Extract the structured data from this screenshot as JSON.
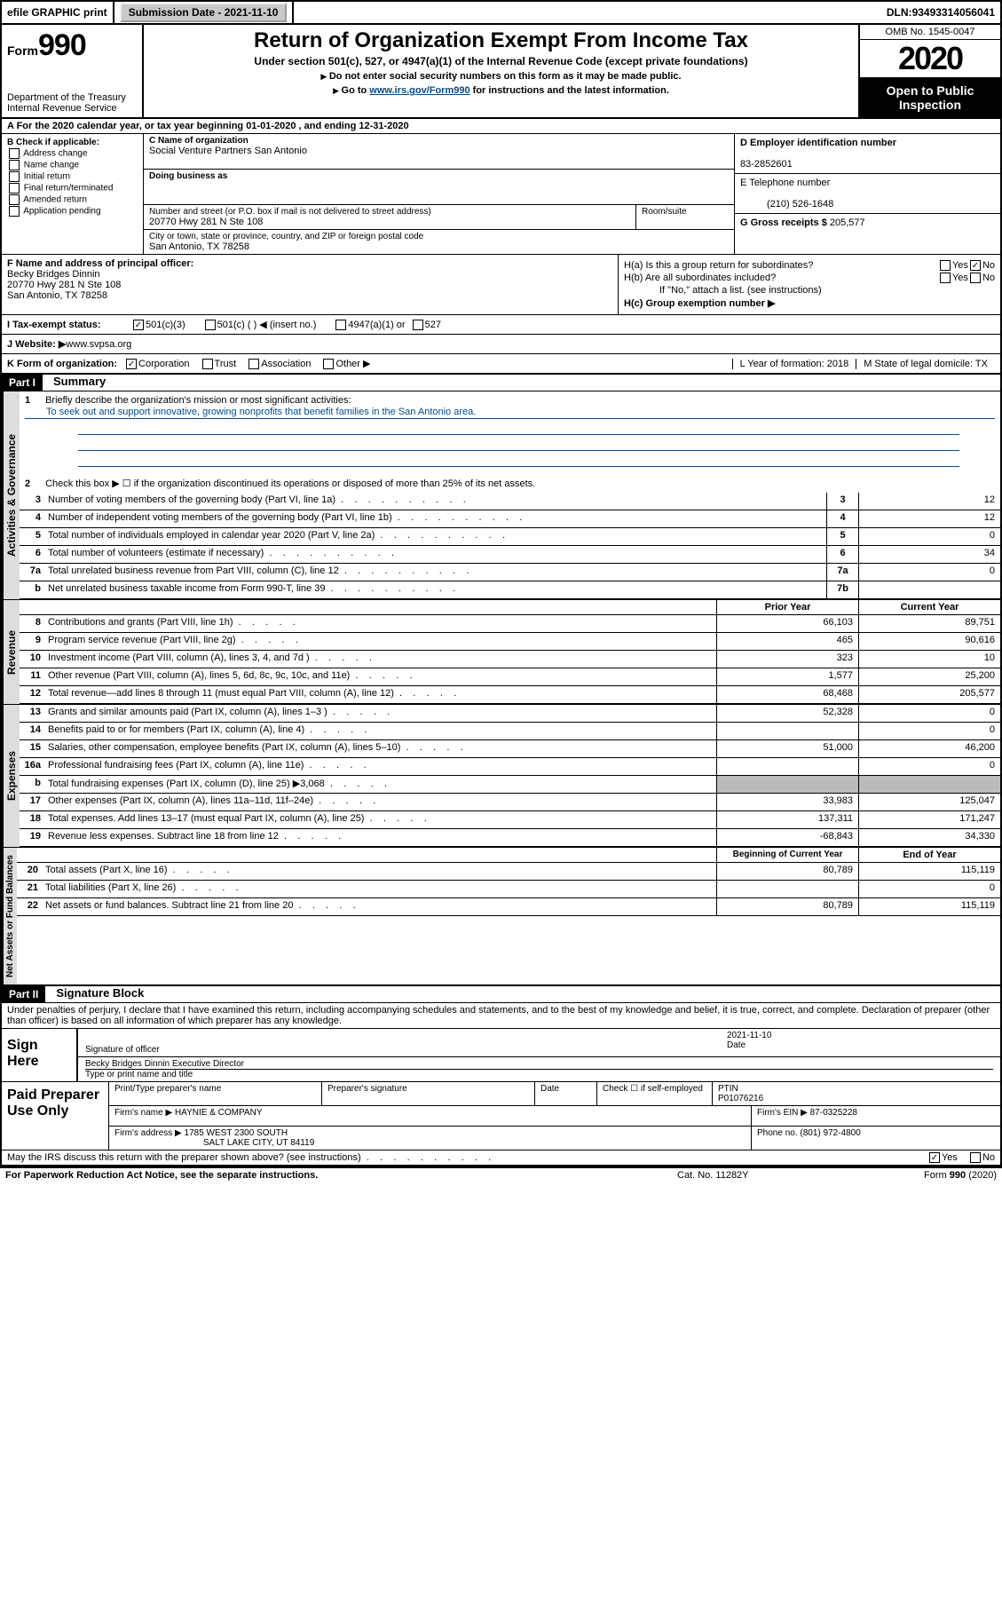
{
  "topbar": {
    "efile": "efile GRAPHIC print",
    "submission_label": "Submission Date - ",
    "submission_date": "2021-11-10",
    "dln_label": "DLN: ",
    "dln": "93493314056041"
  },
  "header": {
    "form_prefix": "Form",
    "form_number": "990",
    "dept": "Department of the Treasury\nInternal Revenue Service",
    "title": "Return of Organization Exempt From Income Tax",
    "subtitle": "Under section 501(c), 527, or 4947(a)(1) of the Internal Revenue Code (except private foundations)",
    "note1": "Do not enter social security numbers on this form as it may be made public.",
    "note2_pre": "Go to ",
    "note2_link": "www.irs.gov/Form990",
    "note2_post": " for instructions and the latest information.",
    "omb": "OMB No. 1545-0047",
    "year": "2020",
    "open": "Open to Public Inspection"
  },
  "lineA": "A   For the 2020 calendar year, or tax year beginning 01-01-2020    , and ending 12-31-2020",
  "boxB": {
    "title": "B Check if applicable:",
    "items": [
      "Address change",
      "Name change",
      "Initial return",
      "Final return/terminated",
      "Amended return",
      "Application pending"
    ]
  },
  "boxC": {
    "name_label": "C Name of organization",
    "name": "Social Venture Partners San Antonio",
    "dba_label": "Doing business as",
    "addr_label": "Number and street (or P.O. box if mail is not delivered to street address)",
    "addr": "20770 Hwy 281 N Ste 108",
    "room_label": "Room/suite",
    "city_label": "City or town, state or province, country, and ZIP or foreign postal code",
    "city": "San Antonio, TX  78258"
  },
  "boxD": {
    "label": "D Employer identification number",
    "value": "83-2852601"
  },
  "boxE": {
    "label": "E Telephone number",
    "value": "(210) 526-1648"
  },
  "boxG": {
    "label": "G Gross receipts $ ",
    "value": "205,577"
  },
  "boxF": {
    "label": "F  Name and address of principal officer:",
    "name": "Becky Bridges Dinnin",
    "addr1": "20770 Hwy 281 N Ste 108",
    "addr2": "San Antonio, TX  78258"
  },
  "boxH": {
    "a": "H(a)  Is this a group return for subordinates?",
    "b": "H(b)  Are all subordinates included?",
    "b_note": "If \"No,\" attach a list. (see instructions)",
    "c": "H(c)  Group exemption number ▶",
    "yes": "Yes",
    "no": "No",
    "a_checked": "no"
  },
  "lineI": {
    "label": "I    Tax-exempt status:",
    "o1": "501(c)(3)",
    "o2": "501(c) (   ) ◀ (insert no.)",
    "o3": "4947(a)(1) or",
    "o4": "527"
  },
  "lineJ": {
    "label": "J    Website: ▶",
    "value": " www.svpsa.org"
  },
  "lineK": {
    "label": "K Form of organization:",
    "o1": "Corporation",
    "o2": "Trust",
    "o3": "Association",
    "o4": "Other ▶",
    "L": "L Year of formation: 2018",
    "M": "M State of legal domicile: TX"
  },
  "partI": {
    "label": "Part I",
    "title": "Summary",
    "q1": "Briefly describe the organization's mission or most significant activities:",
    "mission": "To seek out and support innovative, growing nonprofits that benefit families in the San Antonio area.",
    "q2": "Check this box ▶ ☐  if the organization discontinued its operations or disposed of more than 25% of its net assets.",
    "rows": [
      {
        "n": "3",
        "t": "Number of voting members of the governing body (Part VI, line 1a)",
        "b": "3",
        "v": "12"
      },
      {
        "n": "4",
        "t": "Number of independent voting members of the governing body (Part VI, line 1b)",
        "b": "4",
        "v": "12"
      },
      {
        "n": "5",
        "t": "Total number of individuals employed in calendar year 2020 (Part V, line 2a)",
        "b": "5",
        "v": "0"
      },
      {
        "n": "6",
        "t": "Total number of volunteers (estimate if necessary)",
        "b": "6",
        "v": "34"
      },
      {
        "n": "7a",
        "t": "Total unrelated business revenue from Part VIII, column (C), line 12",
        "b": "7a",
        "v": "0"
      },
      {
        "n": "b",
        "t": "Net unrelated business taxable income from Form 990-T, line 39",
        "b": "7b",
        "v": ""
      }
    ],
    "hdr_prior": "Prior Year",
    "hdr_curr": "Current Year",
    "rev": [
      {
        "n": "8",
        "t": "Contributions and grants (Part VIII, line 1h)",
        "p": "66,103",
        "c": "89,751"
      },
      {
        "n": "9",
        "t": "Program service revenue (Part VIII, line 2g)",
        "p": "465",
        "c": "90,616"
      },
      {
        "n": "10",
        "t": "Investment income (Part VIII, column (A), lines 3, 4, and 7d )",
        "p": "323",
        "c": "10"
      },
      {
        "n": "11",
        "t": "Other revenue (Part VIII, column (A), lines 5, 6d, 8c, 9c, 10c, and 11e)",
        "p": "1,577",
        "c": "25,200"
      },
      {
        "n": "12",
        "t": "Total revenue—add lines 8 through 11 (must equal Part VIII, column (A), line 12)",
        "p": "68,468",
        "c": "205,577"
      }
    ],
    "exp": [
      {
        "n": "13",
        "t": "Grants and similar amounts paid (Part IX, column (A), lines 1–3 )",
        "p": "52,328",
        "c": "0"
      },
      {
        "n": "14",
        "t": "Benefits paid to or for members (Part IX, column (A), line 4)",
        "p": "",
        "c": "0"
      },
      {
        "n": "15",
        "t": "Salaries, other compensation, employee benefits (Part IX, column (A), lines 5–10)",
        "p": "51,000",
        "c": "46,200"
      },
      {
        "n": "16a",
        "t": "Professional fundraising fees (Part IX, column (A), line 11e)",
        "p": "",
        "c": "0"
      },
      {
        "n": "b",
        "t": "Total fundraising expenses (Part IX, column (D), line 25) ▶3,068",
        "p": "SHADE",
        "c": "SHADE"
      },
      {
        "n": "17",
        "t": "Other expenses (Part IX, column (A), lines 11a–11d, 11f–24e)",
        "p": "33,983",
        "c": "125,047"
      },
      {
        "n": "18",
        "t": "Total expenses. Add lines 13–17 (must equal Part IX, column (A), line 25)",
        "p": "137,311",
        "c": "171,247"
      },
      {
        "n": "19",
        "t": "Revenue less expenses. Subtract line 18 from line 12",
        "p": "-68,843",
        "c": "34,330"
      }
    ],
    "hdr_beg": "Beginning of Current Year",
    "hdr_end": "End of Year",
    "net": [
      {
        "n": "20",
        "t": "Total assets (Part X, line 16)",
        "p": "80,789",
        "c": "115,119"
      },
      {
        "n": "21",
        "t": "Total liabilities (Part X, line 26)",
        "p": "",
        "c": "0"
      },
      {
        "n": "22",
        "t": "Net assets or fund balances. Subtract line 21 from line 20",
        "p": "80,789",
        "c": "115,119"
      }
    ],
    "tab_gov": "Activities & Governance",
    "tab_rev": "Revenue",
    "tab_exp": "Expenses",
    "tab_net": "Net Assets or Fund Balances"
  },
  "partII": {
    "label": "Part II",
    "title": "Signature Block",
    "decl": "Under penalties of perjury, I declare that I have examined this return, including accompanying schedules and statements, and to the best of my knowledge and belief, it is true, correct, and complete. Declaration of preparer (other than officer) is based on all information of which preparer has any knowledge.",
    "sign_here": "Sign Here",
    "sig_officer": "Signature of officer",
    "date": "Date",
    "date_val": "2021-11-10",
    "typed": "Becky Bridges Dinnin  Executive Director",
    "typed_label": "Type or print name and title",
    "paid": "Paid Preparer Use Only",
    "prep_name_l": "Print/Type preparer's name",
    "prep_sig_l": "Preparer's signature",
    "prep_date_l": "Date",
    "prep_check": "Check ☐ if self-employed",
    "ptin_l": "PTIN",
    "ptin": "P01076216",
    "firm_name_l": "Firm's name    ▶ ",
    "firm_name": "HAYNIE & COMPANY",
    "firm_ein_l": "Firm's EIN ▶ ",
    "firm_ein": "87-0325228",
    "firm_addr_l": "Firm's address ▶ ",
    "firm_addr": "1785 WEST 2300 SOUTH",
    "firm_city": "SALT LAKE CITY, UT  84119",
    "phone_l": "Phone no. ",
    "phone": "(801) 972-4800",
    "discuss": "May the IRS discuss this return with the preparer shown above? (see instructions)",
    "yes": "Yes",
    "no": "No"
  },
  "footer": {
    "l": "For Paperwork Reduction Act Notice, see the separate instructions.",
    "m": "Cat. No. 11282Y",
    "r": "Form 990 (2020)"
  }
}
